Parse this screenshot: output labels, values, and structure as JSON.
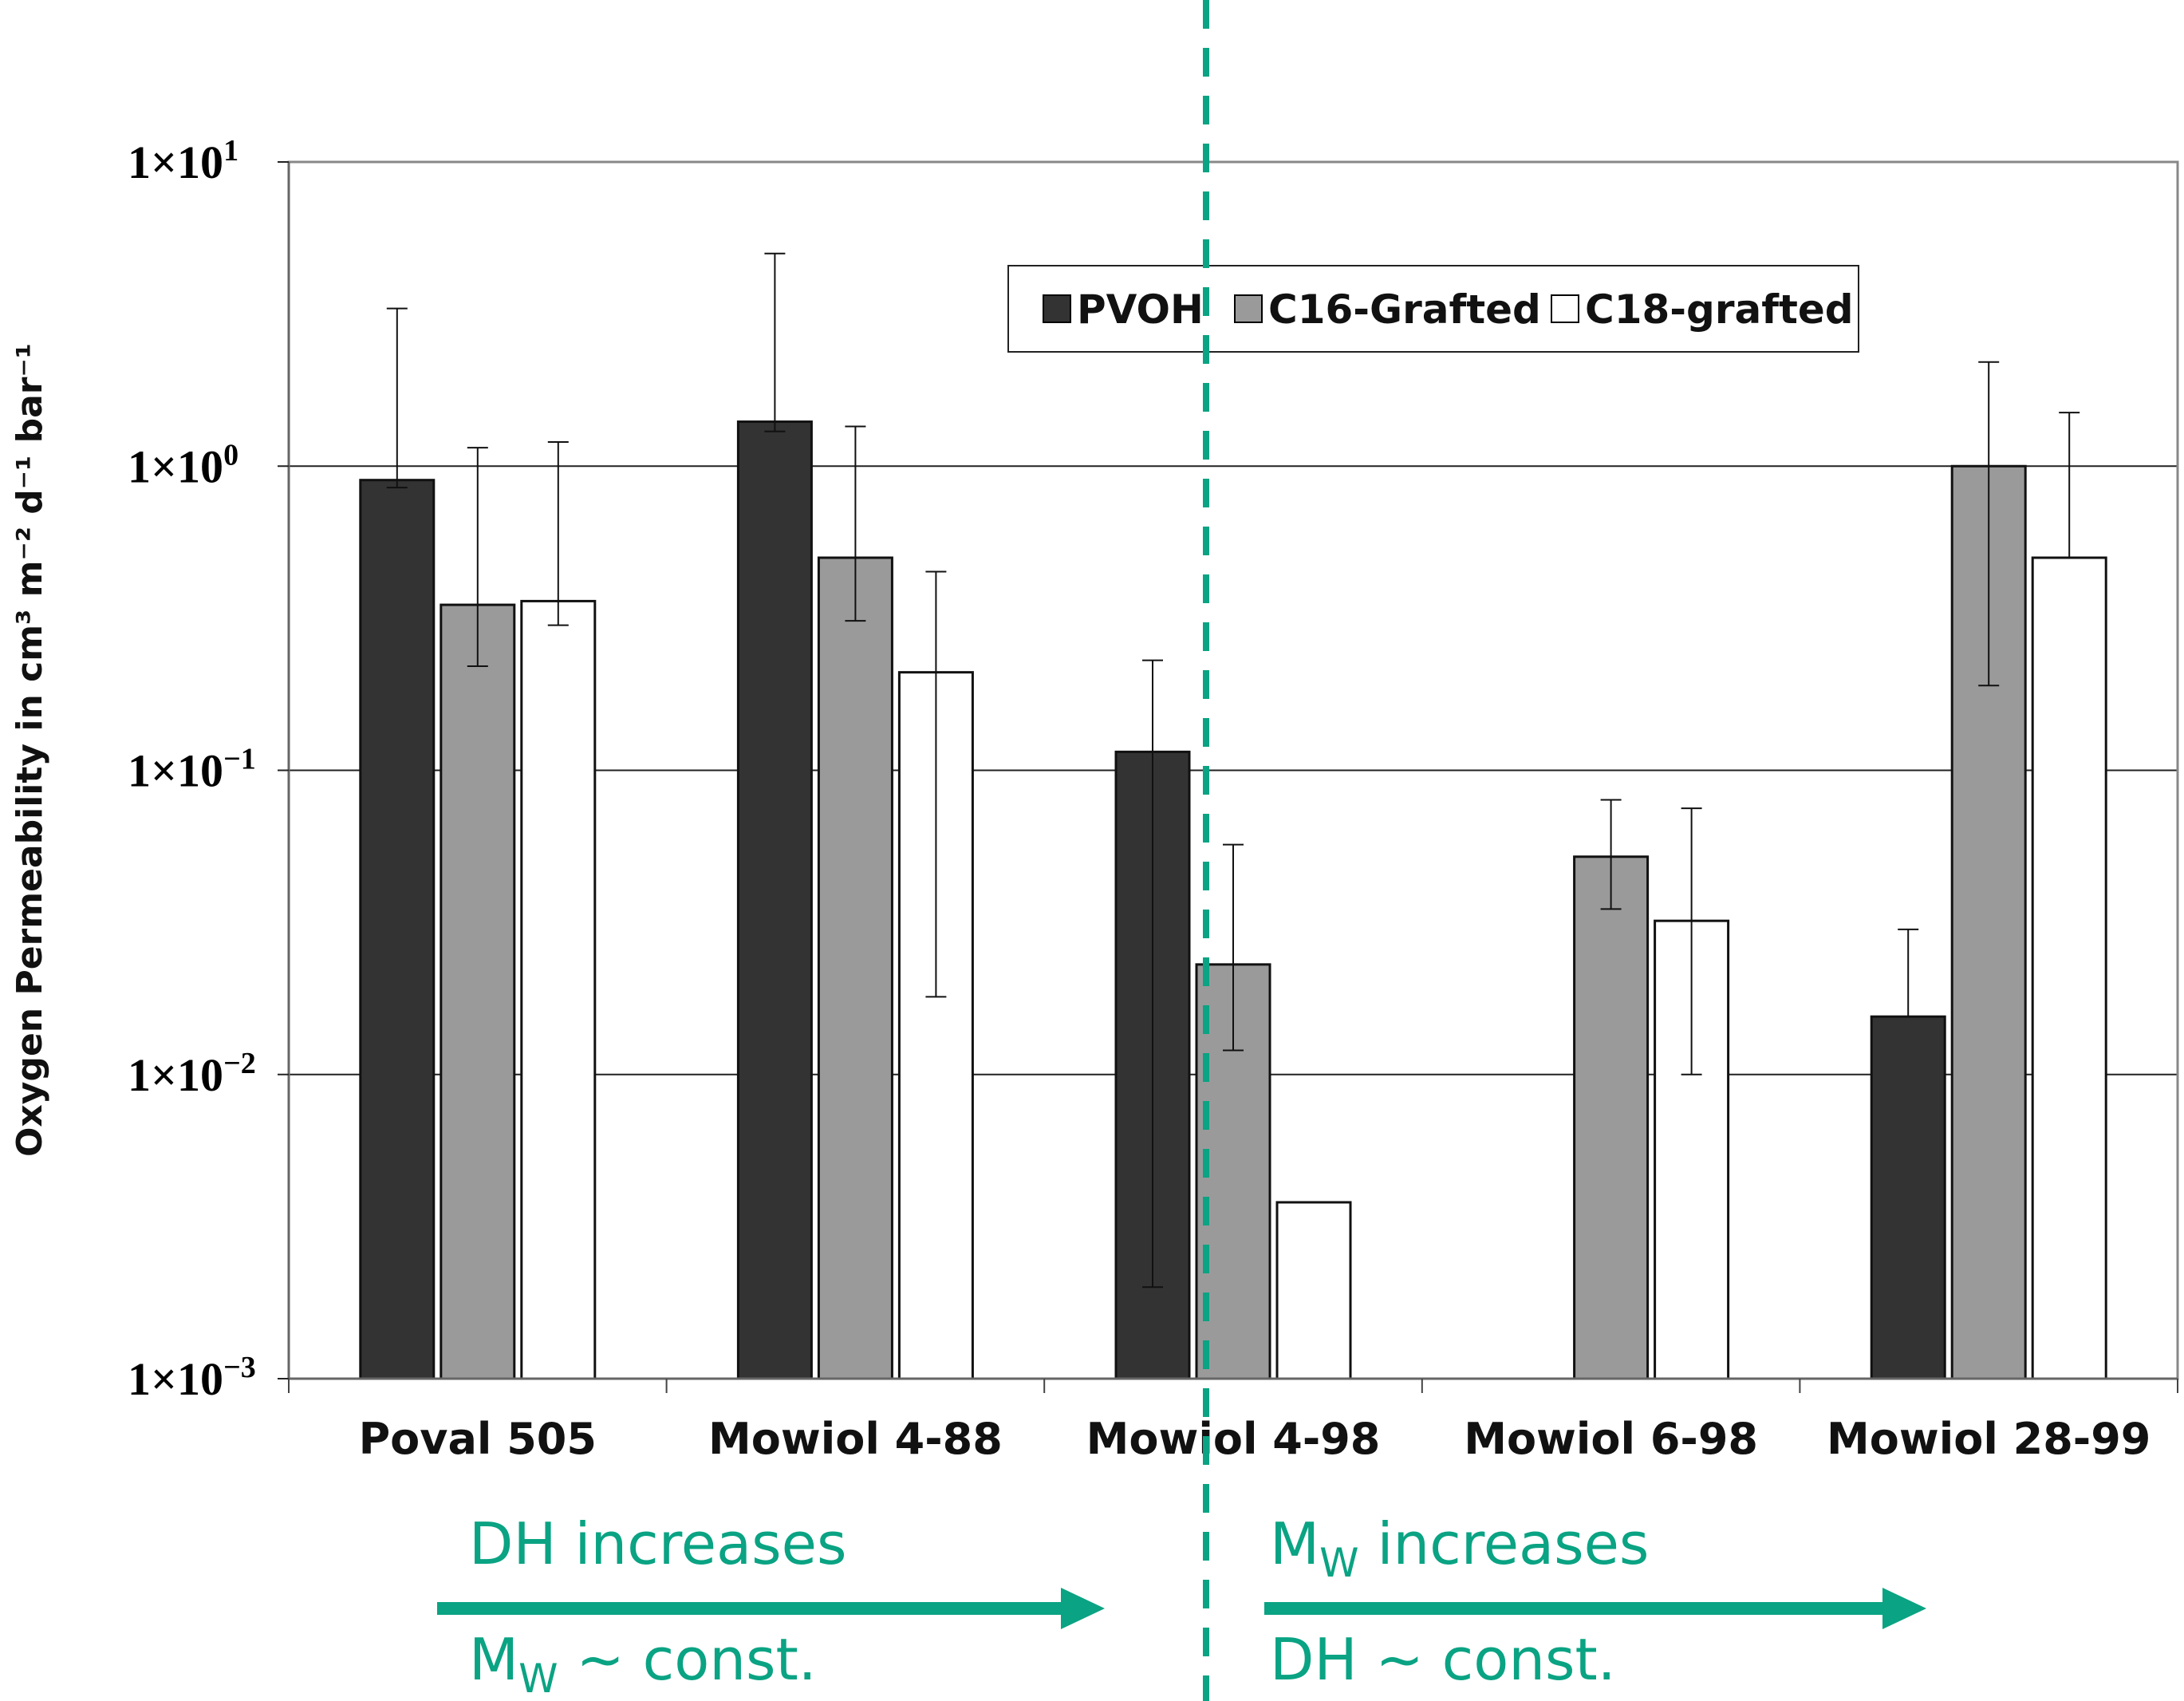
{
  "chart_data": {
    "type": "bar",
    "yscale": "log",
    "ylim": [
      0.001,
      10
    ],
    "ylabel": "Oxygen Permeability in cm³ m⁻² d⁻¹ bar⁻¹",
    "yticks": [
      {
        "value": 10,
        "mantissa": "1×10",
        "exp": "1"
      },
      {
        "value": 1,
        "mantissa": "1×10",
        "exp": "0"
      },
      {
        "value": 0.1,
        "mantissa": "1×10",
        "exp": "−1"
      },
      {
        "value": 0.01,
        "mantissa": "1×10",
        "exp": "−2"
      },
      {
        "value": 0.001,
        "mantissa": "1×10",
        "exp": "−3"
      }
    ],
    "categories": [
      "Poval 505",
      "Mowiol 4-88",
      "Mowiol 4-98",
      "Mowiol 6-98",
      "Mowiol 28-99"
    ],
    "series": [
      {
        "name": "PVOH",
        "color": "#333333",
        "values": [
          0.9,
          1.4,
          0.115,
          null,
          0.0155
        ],
        "err_low": [
          0.85,
          1.3,
          0.002,
          null,
          null
        ],
        "err_high": [
          3.3,
          5.0,
          0.23,
          null,
          0.03
        ]
      },
      {
        "name": "C16-Grafted",
        "color": "#9a9a9a",
        "values": [
          0.35,
          0.5,
          0.023,
          0.052,
          1.0
        ],
        "err_low": [
          0.22,
          0.31,
          0.012,
          0.035,
          0.19
        ],
        "err_high": [
          1.15,
          1.35,
          0.057,
          0.08,
          2.2
        ]
      },
      {
        "name": "C18-grafted",
        "color": "#ffffff",
        "values": [
          0.36,
          0.21,
          0.0038,
          0.032,
          0.5
        ],
        "err_low": [
          0.3,
          0.018,
          null,
          0.01,
          0.5
        ],
        "err_high": [
          1.2,
          0.45,
          null,
          0.075,
          1.5
        ]
      }
    ],
    "legend": {
      "position": "top-right"
    },
    "grid": true,
    "annotations": {
      "left": {
        "top_main": "DH increases",
        "bottom_main": "M",
        "bottom_sub": "W",
        "bottom_rest": " ~ const."
      },
      "right": {
        "top_main": "M",
        "top_sub": "W",
        "top_rest": " increases",
        "bottom_main": "DH ~ const."
      },
      "divider_color": "#0aa383",
      "arrow_color": "#0aa383"
    }
  }
}
